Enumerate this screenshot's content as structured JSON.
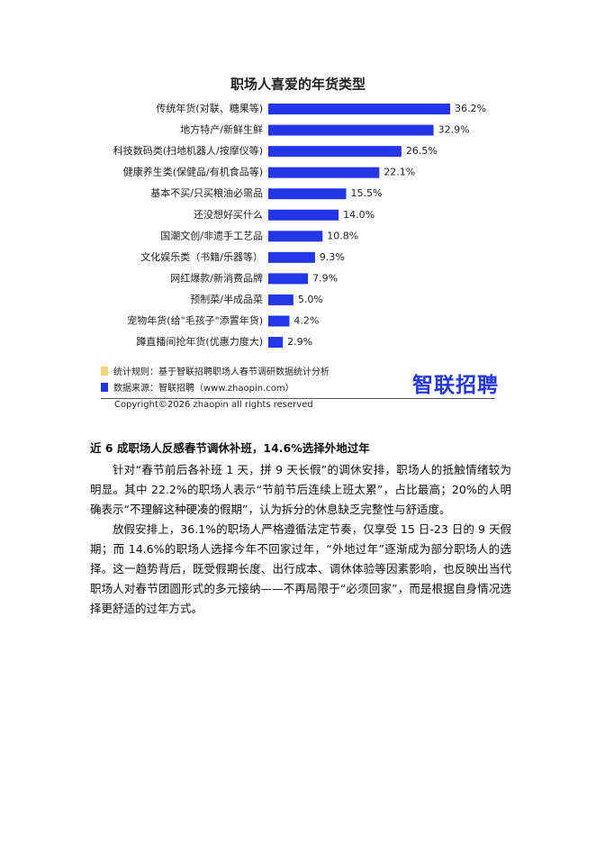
{
  "chart_data": {
    "type": "bar",
    "orientation": "horizontal",
    "title": "职场人喜爱的年货类型",
    "categories": [
      "传统年货(对联、糖果等)",
      "地方特产/新鲜生鲜",
      "科技数码类(扫地机器人/按摩仪等)",
      "健康养生类(保健品/有机食品等)",
      "基本不买/只买粮油必需品",
      "还没想好买什么",
      "国潮文创/非遗手工艺品",
      "文化娱乐类（书籍/乐器等）",
      "网红爆款/新消费品牌",
      "预制菜/半成品菜",
      "宠物年货(给\"毛孩子\"添置年货)",
      "蹲直播间抢年货(优惠力度大)"
    ],
    "values": [
      36.2,
      32.9,
      26.5,
      22.1,
      15.5,
      14.0,
      10.8,
      9.3,
      7.9,
      5.0,
      4.2,
      2.9
    ],
    "value_labels": [
      "36.2%",
      "32.9%",
      "26.5%",
      "22.1%",
      "15.5%",
      "14.0%",
      "10.8%",
      "9.3%",
      "7.9%",
      "5.0%",
      "4.2%",
      "2.9%"
    ],
    "color": "#2336e8"
  },
  "notes": [
    {
      "text": "统计规则：基于智联招聘职场人春节调研数据统计分析",
      "color": "#f3d27c"
    },
    {
      "text": "数据来源：智联招聘（www.zhaopin.com）",
      "color": "#2336e8"
    }
  ],
  "logo": "智联招聘",
  "copyright": "Copyright©2026 zhaopin all rights reserved",
  "article": {
    "heading": "近 6 成职场人反感春节调休补班，14.6%选择外地过年",
    "paragraphs": [
      "针对“春节前后各补班 1 天，拼 9 天长假”的调休安排，职场人的抵触情绪较为明显。其中 22.2%的职场人表示“节前节后连续上班太累”，占比最高；20%的人明确表示“不理解这种硬凑的假期”，认为拆分的休息缺乏完整性与舒适度。",
      "放假安排上，36.1%的职场人严格遵循法定节奏，仅享受 15 日-23 日的 9 天假期；而 14.6%的职场人选择今年不回家过年，“外地过年”逐渐成为部分职场人的选择。这一趋势背后，既受假期长度、出行成本、调休体验等因素影响，也反映出当代职场人对春节团圆形式的多元接纳——不再局限于“必须回家”，而是根据自身情况选择更舒适的过年方式。"
    ]
  }
}
